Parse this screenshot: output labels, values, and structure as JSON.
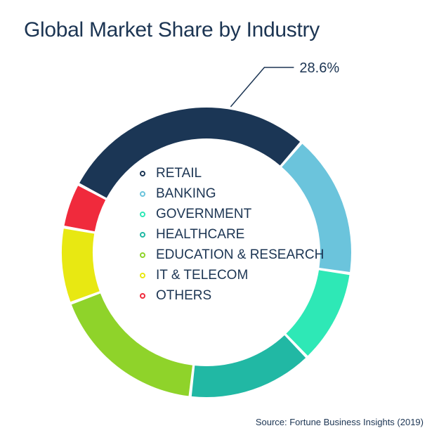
{
  "chart_data": {
    "type": "pie",
    "title": "Global Market Share by Industry",
    "source": "Source: Fortune Business Insights (2019)",
    "categories": [
      "RETAIL",
      "BANKING",
      "GOVERNMENT",
      "HEALTHCARE",
      "EDUCATION & RESEARCH",
      "IT & TELECOM",
      "OTHERS"
    ],
    "values": [
      28.6,
      16.0,
      10.5,
      14.0,
      17.5,
      8.5,
      5.0
    ],
    "colors": [
      "#1b3655",
      "#6bc4dc",
      "#2ee8b6",
      "#21b8a4",
      "#8fd32a",
      "#e8e812",
      "#f02a3c"
    ],
    "data_labels": [
      {
        "category": "RETAIL",
        "text": "28.6%"
      }
    ],
    "legend_position": "center"
  }
}
